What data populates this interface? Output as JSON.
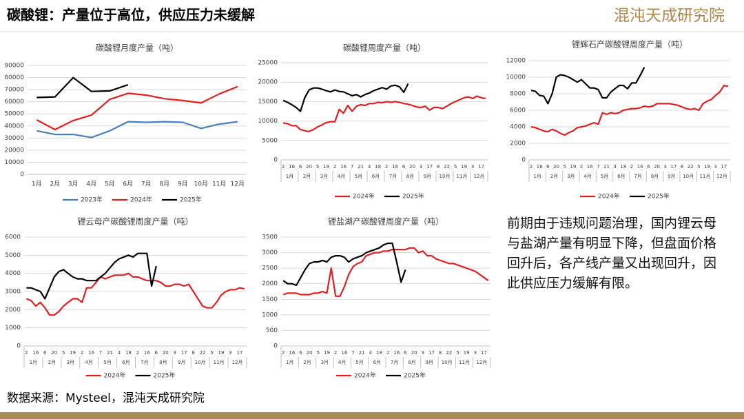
{
  "header": {
    "title": "碳酸锂：产量位于高位，供应压力未缓解",
    "logo": "混沌天成研究院"
  },
  "note": "前期由于违规问题治理，国内锂云母与盐湖产量有明显下降，但盘面价格回升后，各产线产量又出现回升，因此供应压力缓解有限。",
  "source": "数据来源：Mysteel，混沌天成研究院",
  "chart_data": [
    {
      "type": "line",
      "title": "碳酸锂月度产量（吨）",
      "categories": [
        "1月",
        "2月",
        "3月",
        "4月",
        "5月",
        "6月",
        "7月",
        "8月",
        "9月",
        "10月",
        "11月",
        "12月"
      ],
      "ylim": [
        0,
        90000
      ],
      "yticks": [
        0,
        10000,
        20000,
        30000,
        40000,
        50000,
        60000,
        70000,
        80000,
        90000
      ],
      "series": [
        {
          "name": "2023年",
          "color": "#4a7ebb",
          "values": [
            36000,
            33000,
            33000,
            30500,
            36000,
            43500,
            43000,
            43500,
            43000,
            38000,
            41500,
            43500
          ]
        },
        {
          "name": "2024年",
          "color": "#e02020",
          "values": [
            45000,
            37000,
            44500,
            49000,
            62000,
            67000,
            65500,
            62500,
            61000,
            59000,
            66500,
            72500
          ]
        },
        {
          "name": "2025年",
          "color": "#000000",
          "values": [
            63500,
            64000,
            80000,
            68500,
            69000,
            74000,
            null,
            null,
            null,
            null,
            null,
            null
          ]
        }
      ]
    },
    {
      "type": "line",
      "title": "碳酸锂周度产量（吨）",
      "categories": [
        "2",
        null,
        "16",
        null,
        "6",
        null,
        "20",
        null,
        "5",
        null,
        "19",
        null,
        "2",
        null,
        "16",
        null,
        "7",
        null,
        "21",
        null,
        "4",
        null,
        "18",
        null,
        "2",
        null,
        "16",
        null,
        "6",
        null,
        "20",
        null,
        "3",
        null,
        "17",
        null,
        "8",
        null,
        "22",
        null,
        "5",
        null,
        "19",
        null,
        "3",
        null,
        "17",
        null
      ],
      "month_groups": [
        "1月",
        "2月",
        "3月",
        "4月",
        "5月",
        "6月",
        "7月",
        "8月",
        "9月",
        "10月",
        "11月",
        "12月"
      ],
      "ylim": [
        0,
        25000
      ],
      "yticks": [
        0,
        5000,
        10000,
        15000,
        20000,
        25000
      ],
      "series": [
        {
          "name": "2024年",
          "color": "#e02020",
          "values": [
            9500,
            9300,
            8800,
            8800,
            7800,
            7500,
            7300,
            7800,
            8500,
            9000,
            9600,
            9800,
            9800,
            13000,
            12000,
            14000,
            12500,
            13800,
            14200,
            14000,
            14500,
            14500,
            14800,
            14700,
            15000,
            14800,
            15000,
            14800,
            14500,
            14300,
            14000,
            13600,
            13500,
            13800,
            12800,
            13500,
            13500,
            13200,
            13800,
            14500,
            15000,
            15500,
            16000,
            16200,
            15800,
            16400,
            16000,
            15800
          ]
        },
        {
          "name": "2025年",
          "color": "#000000",
          "values": [
            15300,
            14800,
            14200,
            13500,
            12500,
            16000,
            18000,
            18500,
            18500,
            18200,
            17800,
            17500,
            18000,
            17600,
            17500,
            17000,
            16500,
            16800,
            16200,
            16800,
            17200,
            17800,
            18200,
            18600,
            18200,
            19000,
            19200,
            18800,
            17400,
            19600,
            null,
            null,
            null,
            null,
            null,
            null,
            null,
            null,
            null,
            null,
            null,
            null,
            null,
            null,
            null,
            null,
            null,
            null
          ]
        }
      ]
    },
    {
      "type": "line",
      "title": "锂辉石产碳酸锂周度产量（吨）",
      "categories": [
        "2",
        null,
        "16",
        null,
        "6",
        null,
        "20",
        null,
        "5",
        null,
        "19",
        null,
        "2",
        null,
        "16",
        null,
        "7",
        null,
        "21",
        null,
        "4",
        null,
        "18",
        null,
        "2",
        null,
        "16",
        null,
        "6",
        null,
        "20",
        null,
        "3",
        null,
        "17",
        null,
        "8",
        null,
        "22",
        null,
        "5",
        null,
        "19",
        null,
        "3",
        null,
        "17",
        null
      ],
      "month_groups": [
        "1月",
        "2月",
        "3月",
        "4月",
        "5月",
        "6月",
        "7月",
        "8月",
        "9月",
        "10月",
        "11月",
        "12月"
      ],
      "ylim": [
        0,
        12000
      ],
      "yticks": [
        0,
        2000,
        4000,
        6000,
        8000,
        10000,
        12000
      ],
      "series": [
        {
          "name": "2024年",
          "color": "#e02020",
          "values": [
            4000,
            3900,
            3700,
            3500,
            3400,
            3700,
            3500,
            3200,
            3000,
            3300,
            3500,
            3900,
            4000,
            4100,
            4300,
            4500,
            4300,
            5700,
            5500,
            5700,
            5600,
            5700,
            6000,
            6100,
            6200,
            6200,
            6300,
            6500,
            6400,
            6500,
            6800,
            6800,
            6800,
            6800,
            6700,
            6600,
            6400,
            6200,
            6100,
            6200,
            6000,
            6800,
            7100,
            7300,
            7800,
            8200,
            9000,
            8900
          ]
        },
        {
          "name": "2025年",
          "color": "#000000",
          "values": [
            8400,
            8300,
            7800,
            7700,
            6800,
            8000,
            10000,
            10300,
            10200,
            10000,
            9700,
            9400,
            9700,
            9200,
            8700,
            8700,
            8500,
            7500,
            7500,
            8200,
            8600,
            9000,
            9000,
            8600,
            9300,
            9300,
            10200,
            11200,
            null,
            null,
            null,
            null,
            null,
            null,
            null,
            null,
            null,
            null,
            null,
            null,
            null,
            null,
            null,
            null,
            null,
            null,
            null,
            null
          ]
        }
      ]
    },
    {
      "type": "line",
      "title": "锂云母产碳酸锂周度产量（吨）",
      "categories": [
        "2",
        null,
        "16",
        null,
        "6",
        null,
        "20",
        null,
        "5",
        null,
        "19",
        null,
        "2",
        null,
        "16",
        null,
        "7",
        null,
        "21",
        null,
        "4",
        null,
        "18",
        null,
        "2",
        null,
        "16",
        null,
        "6",
        null,
        "20",
        null,
        "3",
        null,
        "17",
        null,
        "8",
        null,
        "22",
        null,
        "5",
        null,
        "19",
        null,
        "3",
        null,
        "17",
        null
      ],
      "month_groups": [
        "1月",
        "2月",
        "3月",
        "4月",
        "5月",
        "6月",
        "7月",
        "8月",
        "9月",
        "10月",
        "11月",
        "12月"
      ],
      "ylim": [
        0,
        6000
      ],
      "yticks": [
        0,
        1000,
        2000,
        3000,
        4000,
        5000,
        6000
      ],
      "series": [
        {
          "name": "2024年",
          "color": "#e02020",
          "values": [
            2600,
            2500,
            2200,
            2400,
            2100,
            1700,
            1700,
            1900,
            2200,
            2400,
            2600,
            2600,
            2400,
            3200,
            3200,
            3500,
            3800,
            3700,
            3800,
            3900,
            3900,
            3900,
            4000,
            3800,
            3800,
            3700,
            3600,
            3600,
            3600,
            3500,
            3300,
            3300,
            3400,
            3400,
            3300,
            3400,
            3000,
            2600,
            2200,
            2100,
            2100,
            2400,
            2800,
            3000,
            3100,
            3100,
            3200,
            3150
          ]
        },
        {
          "name": "2025年",
          "color": "#000000",
          "values": [
            3200,
            3200,
            3100,
            3000,
            2600,
            3200,
            3800,
            4100,
            4200,
            4000,
            3800,
            3700,
            3700,
            3600,
            3600,
            3600,
            3800,
            4000,
            4300,
            4600,
            4800,
            4900,
            5000,
            4900,
            5100,
            5100,
            5100,
            3300,
            4400,
            null,
            null,
            null,
            null,
            null,
            null,
            null,
            null,
            null,
            null,
            null,
            null,
            null,
            null,
            null,
            null,
            null,
            null,
            null
          ]
        }
      ]
    },
    {
      "type": "line",
      "title": "锂盐湖产碳酸锂周度产量（吨）",
      "categories": [
        "2",
        null,
        "16",
        null,
        "6",
        null,
        "20",
        null,
        "5",
        null,
        "19",
        null,
        "2",
        null,
        "16",
        null,
        "7",
        null,
        "21",
        null,
        "4",
        null,
        "18",
        null,
        "2",
        null,
        "16",
        null,
        "6",
        null,
        "20",
        null,
        "3",
        null,
        "17",
        null,
        "8",
        null,
        "22",
        null,
        "5",
        null,
        "19",
        null,
        "3",
        null,
        "17",
        null
      ],
      "month_groups": [
        "1月",
        "2月",
        "3月",
        "4月",
        "5月",
        "6月",
        "7月",
        "8月",
        "9月",
        "10月",
        "11月",
        "12月"
      ],
      "ylim": [
        0,
        3500
      ],
      "yticks": [
        0,
        500,
        1000,
        1500,
        2000,
        2500,
        3000,
        3500
      ],
      "series": [
        {
          "name": "2024年",
          "color": "#e02020",
          "values": [
            1650,
            1700,
            1700,
            1700,
            1650,
            1650,
            1650,
            1700,
            1700,
            1750,
            1700,
            2500,
            1600,
            1600,
            1900,
            2300,
            2550,
            2650,
            2700,
            2900,
            2950,
            3000,
            3000,
            3050,
            3050,
            3100,
            3100,
            3100,
            3100,
            3150,
            3150,
            3000,
            3050,
            2900,
            2900,
            2800,
            2750,
            2700,
            2650,
            2650,
            2600,
            2550,
            2500,
            2450,
            2400,
            2300,
            2200,
            2100
          ]
        },
        {
          "name": "2025年",
          "color": "#000000",
          "values": [
            2100,
            2000,
            2000,
            1950,
            2200,
            2450,
            2650,
            2700,
            2700,
            2750,
            2700,
            2850,
            2900,
            2900,
            2850,
            2700,
            2800,
            2850,
            2900,
            3000,
            3050,
            3100,
            3150,
            3250,
            3300,
            3300,
            2700,
            2050,
            2450,
            null,
            null,
            null,
            null,
            null,
            null,
            null,
            null,
            null,
            null,
            null,
            null,
            null,
            null,
            null,
            null,
            null,
            null,
            null
          ]
        }
      ]
    }
  ]
}
